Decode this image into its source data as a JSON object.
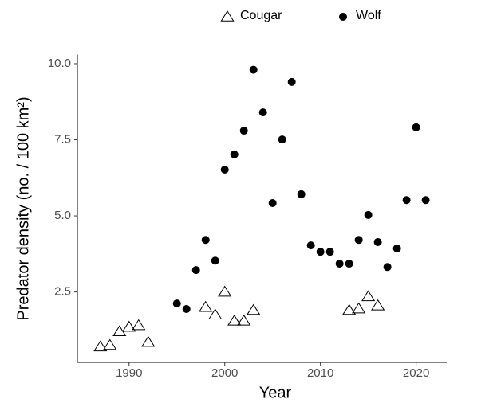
{
  "chart_data": {
    "type": "scatter",
    "x_label": "Year",
    "y_label": "Predator density (no. / 100 km²)",
    "xlim": [
      1984.6,
      2023.2
    ],
    "xticks": [
      1990,
      2000,
      2010,
      2020
    ],
    "ylim": [
      0.24,
      10.3
    ],
    "yticks": [
      2.5,
      {
        "value": 5.0,
        "label": "5.0"
      },
      7.5,
      {
        "value": 10.0,
        "label": "10.0"
      }
    ],
    "grid": false,
    "legend": "top",
    "series": [
      {
        "name": "Cougar",
        "marker": "open-triangle",
        "color": "#000000",
        "x": [
          1987,
          1988,
          1989,
          1990,
          1991,
          1992,
          1998,
          1999,
          2000,
          2001,
          2002,
          2003,
          2013,
          2014,
          2015,
          2016
        ],
        "values": [
          0.7,
          0.75,
          1.2,
          1.35,
          1.4,
          0.85,
          2.0,
          1.75,
          2.5,
          1.55,
          1.55,
          1.9,
          1.9,
          1.95,
          2.35,
          2.05
        ]
      },
      {
        "name": "Wolf",
        "marker": "filled-circle",
        "color": "#000000",
        "x": [
          1995,
          1996,
          1997,
          1998,
          1999,
          2000,
          2001,
          2002,
          2003,
          2004,
          2005,
          2006,
          2007,
          2008,
          2009,
          2010,
          2011,
          2012,
          2013,
          2014,
          2015,
          2016,
          2017,
          2018,
          2019,
          2020,
          2021
        ],
        "values": [
          2.12,
          1.94,
          3.22,
          4.21,
          3.53,
          6.52,
          7.02,
          7.8,
          9.8,
          8.4,
          5.42,
          7.51,
          9.4,
          5.71,
          4.03,
          3.82,
          3.82,
          3.43,
          3.43,
          4.21,
          5.03,
          4.14,
          3.32,
          3.93,
          5.52,
          7.91,
          5.52
        ]
      }
    ]
  }
}
